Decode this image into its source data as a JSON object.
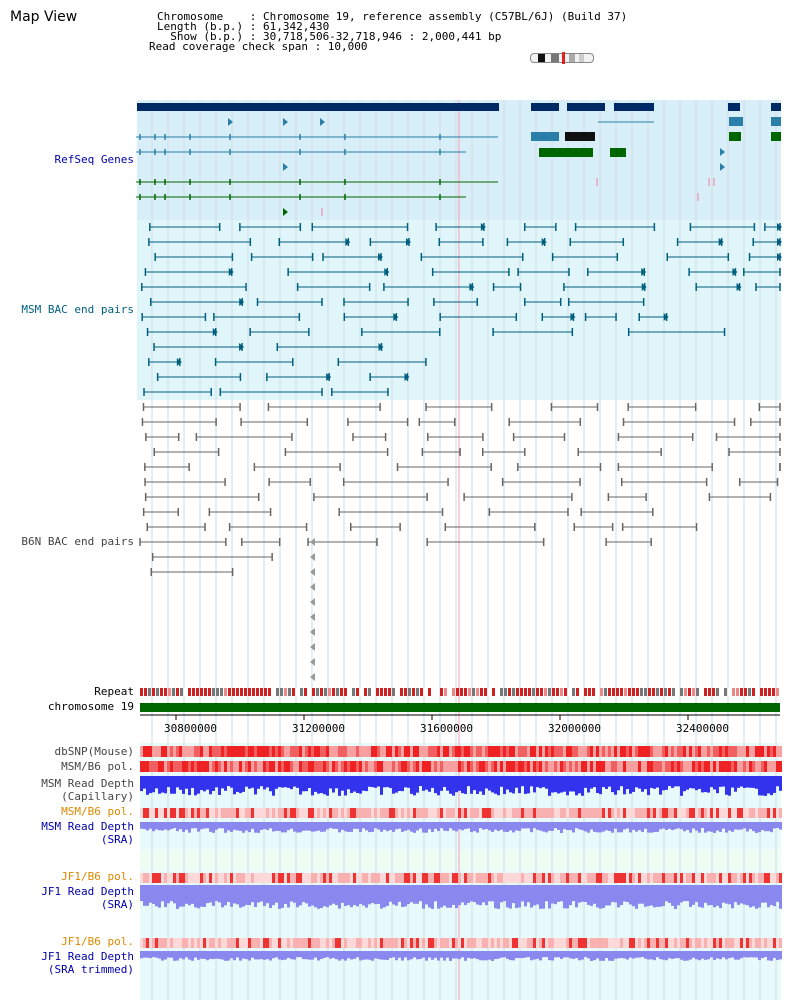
{
  "header": {
    "title": "Map View",
    "info_lines": [
      "Chromosome    : Chromosome 19, reference assembly (C57BL/6J) (Build 37)",
      "Length (b.p.) : 61,342,430",
      "  Show (b.p.) : 30,718,506-32,718,946 : 2,000,441 bp",
      "Read coverage check span : 10,000"
    ]
  },
  "tracks": {
    "refseq": "RefSeq Genes",
    "msm_bac": "MSM BAC end pairs",
    "b6n_bac": "B6N BAC end pairs",
    "repeat": "Repeat",
    "chromosome": "chromosome 19",
    "dbsnp": "dbSNP(Mouse)",
    "msm_b6_pol_1": "MSM/B6 pol.",
    "msm_depth_cap_1": "MSM Read Depth",
    "msm_depth_cap_2": "(Capillary)",
    "msm_b6_pol_2": "MSM/B6 pol.",
    "msm_depth_sra_1": "MSM Read Depth",
    "msm_depth_sra_2": "(SRA)",
    "jf1_b6_pol_1": "JF1/B6 pol.",
    "jf1_depth_sra_1": "JF1 Read Depth",
    "jf1_depth_sra_2": "(SRA)",
    "jf1_b6_pol_2": "JF1/B6 pol.",
    "jf1_depth_trim_1": "JF1 Read Depth",
    "jf1_depth_trim_2": "(SRA trimmed)"
  },
  "axis": {
    "ticks": [
      "30800000",
      "31200000",
      "31600000",
      "32000000",
      "32400000"
    ]
  },
  "colors": {
    "refseq_bg": "#d8eef8",
    "msm_bg": "#e0f6fa",
    "lower_bg": "#e8fafc",
    "gene_dark": "#002a66",
    "gene_teal": "#2a7fa8",
    "gene_green": "#006600",
    "msm_bac": "#005f7f",
    "b6n_bac": "#666666",
    "chromosome_bar": "#006600",
    "snp_red": "#ee3333",
    "depth_blue": "#3333ee",
    "depth_light_blue": "#8888ee",
    "label_blue": "#0000aa",
    "label_orange": "#dd8800",
    "label_gray": "#444444"
  }
}
